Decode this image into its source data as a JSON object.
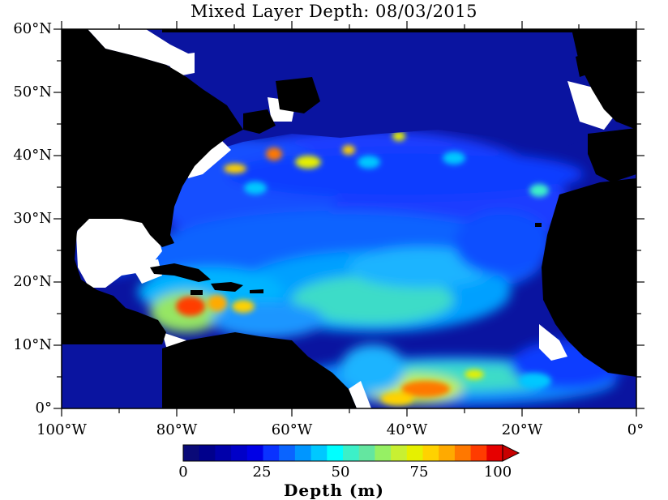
{
  "title": "Mixed Layer Depth: 08/03/2015",
  "lat_ticks": [
    "60°N",
    "50°N",
    "40°N",
    "30°N",
    "20°N",
    "10°N",
    "0°"
  ],
  "lon_ticks": [
    "100°W",
    "80°W",
    "60°W",
    "40°W",
    "20°W",
    "0°"
  ],
  "colorbar": {
    "title": "Depth (m)",
    "tick_labels": [
      "0",
      "25",
      "50",
      "75",
      "100"
    ],
    "range": [
      0,
      100
    ],
    "colors": [
      "#0a0a78",
      "#00008c",
      "#0000aa",
      "#0000c8",
      "#0000e6",
      "#0a32ff",
      "#0a64ff",
      "#0096ff",
      "#00c8ff",
      "#00ffff",
      "#3cf0c8",
      "#64e6a0",
      "#96f064",
      "#c8f032",
      "#e6f000",
      "#ffd200",
      "#ffaa00",
      "#ff7800",
      "#ff3c00",
      "#e60000",
      "#c80000"
    ]
  },
  "map": {
    "lon_range": [
      -100,
      0
    ],
    "lat_range": [
      0,
      60
    ],
    "ocean_color": "#1428d0",
    "land_color": "#000000",
    "nodata_color": "#ffffff"
  }
}
